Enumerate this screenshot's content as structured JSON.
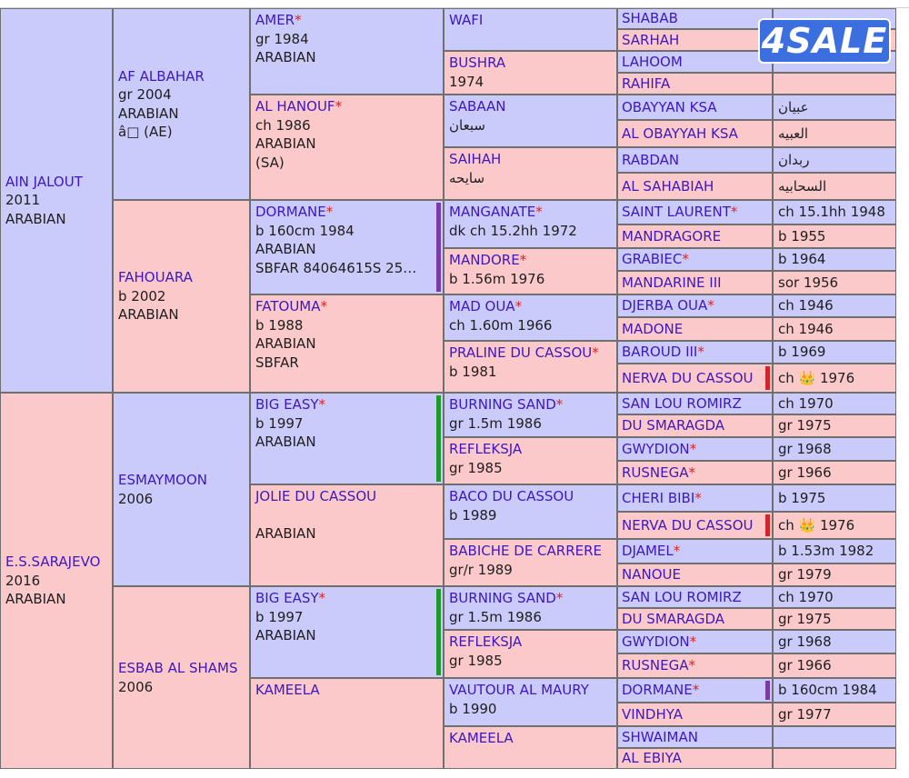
{
  "watermark": {
    "label": "4SALE"
  },
  "pedigree": {
    "gen1": [
      {
        "name": "AIN JALOUT",
        "lines": [
          "2011",
          "ARABIAN"
        ],
        "sex": "m",
        "star": false
      },
      {
        "name": "E.S.SARAJEVO",
        "lines": [
          "2016",
          "ARABIAN"
        ],
        "sex": "f",
        "star": false
      }
    ],
    "gen2": [
      {
        "name": "AF ALBAHAR",
        "lines": [
          "gr 2004",
          "ARABIAN",
          "â□ (AE)"
        ],
        "sex": "m",
        "star": false
      },
      {
        "name": "FAHOUARA",
        "lines": [
          "b 2002",
          "ARABIAN"
        ],
        "sex": "f",
        "star": false
      },
      {
        "name": "ESMAYMOON",
        "lines": [
          "2006"
        ],
        "sex": "m",
        "star": false
      },
      {
        "name": "ESBAB AL SHAMS",
        "lines": [
          "2006"
        ],
        "sex": "f",
        "star": false
      }
    ],
    "gen3": [
      {
        "name": "AMER",
        "lines": [
          "gr 1984",
          "ARABIAN"
        ],
        "sex": "m",
        "star": true
      },
      {
        "name": "AL HANOUF",
        "lines": [
          "ch 1986",
          "ARABIAN",
          "(SA)"
        ],
        "sex": "f",
        "star": true
      },
      {
        "name": "DORMANE",
        "lines": [
          "b 160cm 1984",
          "ARABIAN",
          "SBFAR 84064615S 25…"
        ],
        "sex": "m",
        "star": true
      },
      {
        "name": "FATOUMA",
        "lines": [
          "b 1988",
          "ARABIAN",
          "SBFAR"
        ],
        "sex": "f",
        "star": true
      },
      {
        "name": "BIG EASY",
        "lines": [
          "b 1997",
          "ARABIAN"
        ],
        "sex": "m",
        "star": true
      },
      {
        "name": "JOLIE DU CASSOU",
        "lines": [
          "",
          "ARABIAN"
        ],
        "sex": "f",
        "star": false
      },
      {
        "name": "BIG EASY",
        "lines": [
          "b 1997",
          "ARABIAN"
        ],
        "sex": "m",
        "star": true
      },
      {
        "name": "KAMEELA",
        "lines": [],
        "sex": "f",
        "star": false
      }
    ],
    "gen4": [
      {
        "name": "WAFI",
        "lines": [],
        "sex": "m",
        "star": false
      },
      {
        "name": "BUSHRA",
        "lines": [
          "1974"
        ],
        "sex": "f",
        "star": false
      },
      {
        "name": "SABAAN",
        "lines": [
          "سبعان"
        ],
        "sex": "m",
        "star": false
      },
      {
        "name": "SAIHAH",
        "lines": [
          "سايحه"
        ],
        "sex": "f",
        "star": false
      },
      {
        "name": "MANGANATE",
        "lines": [
          "dk ch 15.2hh 1972"
        ],
        "sex": "m",
        "star": true
      },
      {
        "name": "MANDORE",
        "lines": [
          "b 1.56m 1976"
        ],
        "sex": "f",
        "star": true
      },
      {
        "name": "MAD OUA",
        "lines": [
          "ch 1.60m 1966"
        ],
        "sex": "m",
        "star": true
      },
      {
        "name": "PRALINE DU CASSOU",
        "lines": [
          "b 1981"
        ],
        "sex": "f",
        "star": true
      },
      {
        "name": "BURNING SAND",
        "lines": [
          "gr 1.5m 1986"
        ],
        "sex": "m",
        "star": true
      },
      {
        "name": "REFLEKSJA",
        "lines": [
          "gr 1985"
        ],
        "sex": "f",
        "star": false
      },
      {
        "name": "BACO DU CASSOU",
        "lines": [
          "b 1989"
        ],
        "sex": "m",
        "star": false
      },
      {
        "name": "BABICHE DE CARRERE",
        "lines": [
          "gr/r 1989"
        ],
        "sex": "f",
        "star": false
      },
      {
        "name": "BURNING SAND",
        "lines": [
          "gr 1.5m 1986"
        ],
        "sex": "m",
        "star": true
      },
      {
        "name": "REFLEKSJA",
        "lines": [
          "gr 1985"
        ],
        "sex": "f",
        "star": false
      },
      {
        "name": "VAUTOUR AL MAURY",
        "lines": [
          "b 1990"
        ],
        "sex": "m",
        "star": false
      },
      {
        "name": "KAMEELA",
        "lines": [],
        "sex": "f",
        "star": false
      }
    ],
    "gen5": [
      {
        "name": "SHABAB",
        "info": "",
        "sex": "m",
        "star": false
      },
      {
        "name": "SARHAH",
        "info": "",
        "sex": "f",
        "star": false
      },
      {
        "name": "LAHOOM",
        "info": "",
        "sex": "m",
        "star": false
      },
      {
        "name": "RAHIFA",
        "info": "",
        "sex": "f",
        "star": false
      },
      {
        "name": "OBAYYAN KSA",
        "info": "عبيان",
        "sex": "m",
        "star": false
      },
      {
        "name": "AL OBAYYAH KSA",
        "info": "العبيه",
        "sex": "f",
        "star": false
      },
      {
        "name": "RABDAN",
        "info": "ربدان",
        "sex": "m",
        "star": false
      },
      {
        "name": "AL SAHABIAH",
        "info": "السحابيه",
        "sex": "f",
        "star": false
      },
      {
        "name": "SAINT LAURENT",
        "info": "ch 15.1hh 1948",
        "sex": "m",
        "star": true
      },
      {
        "name": "MANDRAGORE",
        "info": "b 1955",
        "sex": "f",
        "star": false
      },
      {
        "name": "GRABIEC",
        "info": "b 1964",
        "sex": "m",
        "star": true
      },
      {
        "name": "MANDARINE III",
        "info": "sor 1956",
        "sex": "f",
        "star": false
      },
      {
        "name": "DJERBA OUA",
        "info": "ch 1946",
        "sex": "m",
        "star": true
      },
      {
        "name": "MADONE",
        "info": "ch 1946",
        "sex": "f",
        "star": false
      },
      {
        "name": "BAROUD III",
        "info": "b 1969",
        "sex": "m",
        "star": true
      },
      {
        "name": "NERVA DU CASSOU",
        "info": "ch 👑 1976",
        "sex": "f",
        "star": false
      },
      {
        "name": "SAN LOU ROMIRZ",
        "info": "ch 1970",
        "sex": "m",
        "star": false
      },
      {
        "name": "DU SMARAGDA",
        "info": "gr 1975",
        "sex": "f",
        "star": false
      },
      {
        "name": "GWYDION",
        "info": "gr 1968",
        "sex": "m",
        "star": true
      },
      {
        "name": "RUSNEGA",
        "info": "gr 1966",
        "sex": "f",
        "star": true
      },
      {
        "name": "CHERI BIBI",
        "info": "b 1975",
        "sex": "m",
        "star": true
      },
      {
        "name": "NERVA DU CASSOU",
        "info": "ch 👑 1976",
        "sex": "f",
        "star": false
      },
      {
        "name": "DJAMEL",
        "info": "b 1.53m 1982",
        "sex": "m",
        "star": true
      },
      {
        "name": "NANOUE",
        "info": "gr 1979",
        "sex": "f",
        "star": false
      },
      {
        "name": "SAN LOU ROMIRZ",
        "info": "ch 1970",
        "sex": "m",
        "star": false
      },
      {
        "name": "DU SMARAGDA",
        "info": "gr 1975",
        "sex": "f",
        "star": false
      },
      {
        "name": "GWYDION",
        "info": "gr 1968",
        "sex": "m",
        "star": true
      },
      {
        "name": "RUSNEGA",
        "info": "gr 1966",
        "sex": "f",
        "star": true
      },
      {
        "name": "DORMANE",
        "info": "b 160cm 1984",
        "sex": "m",
        "star": true
      },
      {
        "name": "VINDHYA",
        "info": "gr 1977",
        "sex": "f",
        "star": false
      },
      {
        "name": "SHWAIMAN",
        "info": "",
        "sex": "m",
        "star": false
      },
      {
        "name": "AL EBIYA",
        "info": "",
        "sex": "f",
        "star": false
      }
    ]
  },
  "colors": {
    "male_bg": "#cbcbfb",
    "female_bg": "#fcc9ca",
    "name_text": "#3c18c2",
    "star": "#e3201f",
    "bar_purple": "#7a3aa8",
    "bar_green": "#1f9a2a",
    "bar_red": "#d3242a"
  }
}
